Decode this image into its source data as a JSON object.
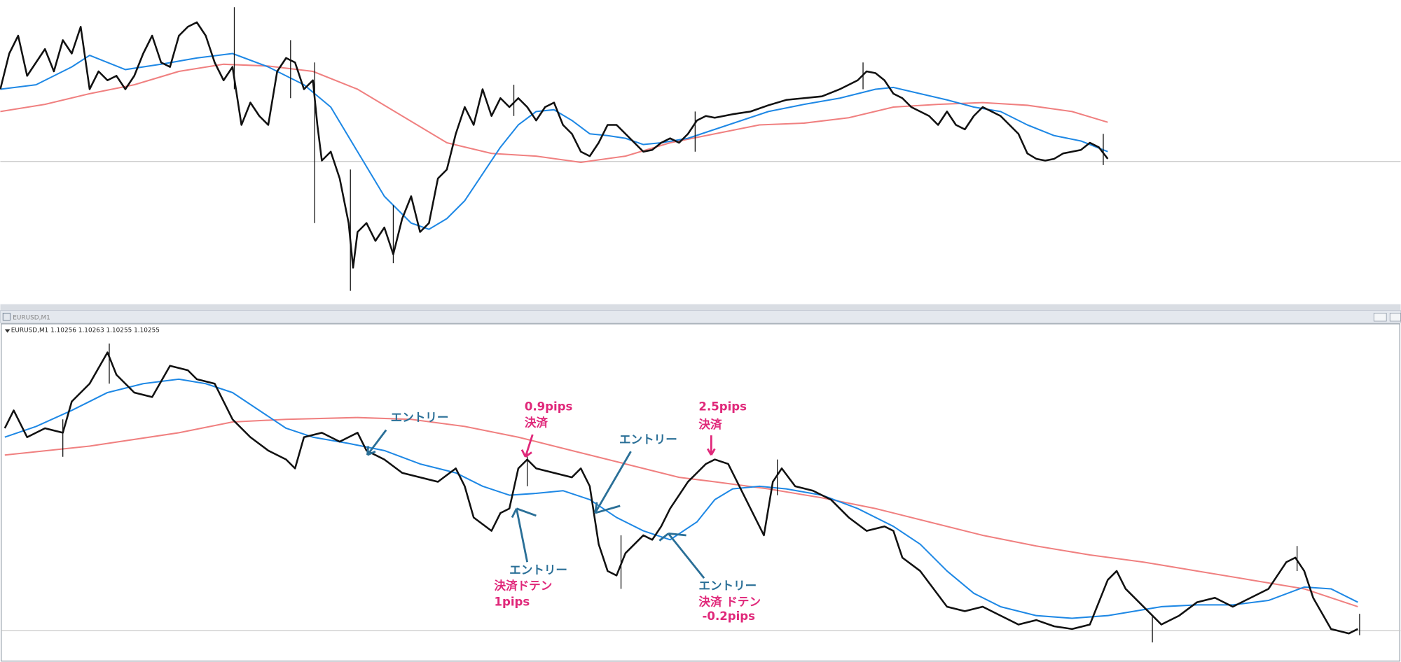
{
  "bottom_window": {
    "title": "EURUSD,M1",
    "info": "EURUSD,M1  1.10256 1.10263 1.10255 1.10255"
  },
  "annotations": [
    {
      "text": "エントリー",
      "color": "#2a6f97"
    },
    {
      "text": "0.9pips",
      "color": "#e0287a"
    },
    {
      "text": "決済",
      "color": "#e0287a"
    },
    {
      "text": "エントリー",
      "color": "#2a6f97"
    },
    {
      "text": "2.5pips",
      "color": "#e0287a"
    },
    {
      "text": "決済",
      "color": "#e0287a"
    },
    {
      "text": "エントリー",
      "color": "#2a6f97"
    },
    {
      "text": "決済ドテン",
      "color": "#e0287a"
    },
    {
      "text": "1pips",
      "color": "#e0287a"
    },
    {
      "text": "エントリー",
      "color": "#2a6f97"
    },
    {
      "text": "決済 ドテン",
      "color": "#e0287a"
    },
    {
      "text": "-0.2pips",
      "color": "#e0287a"
    }
  ]
}
